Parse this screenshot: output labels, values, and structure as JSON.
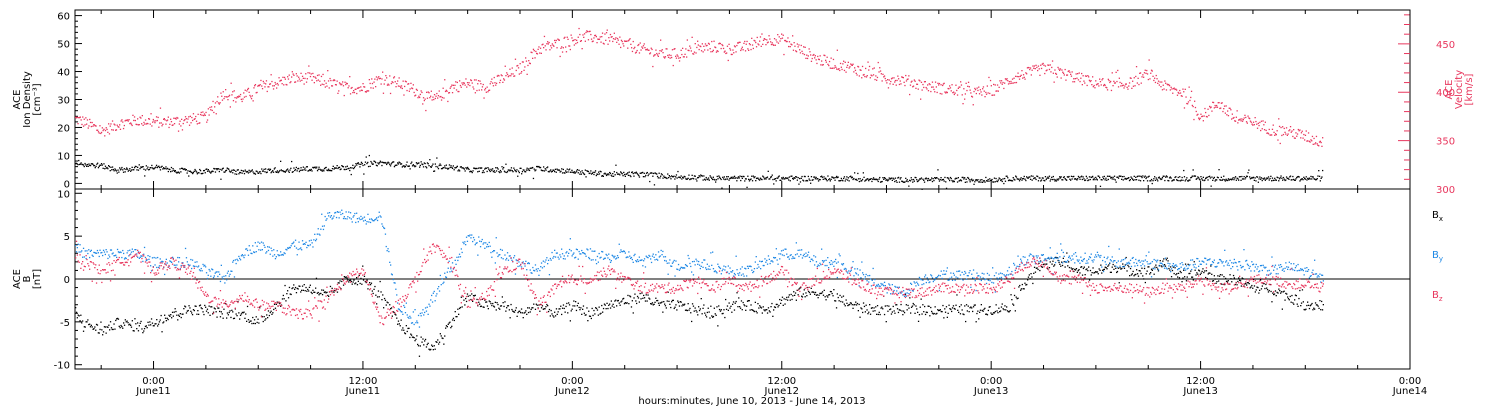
{
  "chart_data": [
    {
      "type": "scatter",
      "panel": "plasma",
      "ylabel_left": [
        "ACE",
        "Ion Density",
        "[cm⁻³]"
      ],
      "ylabel_right": [
        "ACE",
        "Velocity",
        "[km/s]"
      ],
      "ylim_left": [
        -2,
        62
      ],
      "ylim_right": [
        300,
        485
      ],
      "yticks_left": [
        0,
        10,
        20,
        30,
        40,
        50,
        60
      ],
      "yticks_right": [
        300,
        350,
        400,
        450
      ],
      "xlim_hours": [
        -4.5,
        72
      ],
      "series": [
        {
          "name": "Velocity",
          "axis": "right",
          "color": "#e8365d",
          "x": [
            -4.5,
            -4,
            -3,
            -2,
            -1,
            0,
            1,
            2,
            3,
            4,
            5,
            6,
            7,
            8,
            9,
            10,
            11,
            12,
            13,
            14,
            15,
            16,
            17,
            18,
            19,
            20,
            21,
            22,
            23,
            24,
            25,
            26,
            27,
            28,
            29,
            30,
            31,
            32,
            33,
            34,
            35,
            36,
            37,
            38,
            39,
            40,
            41,
            42,
            43,
            44,
            45,
            46,
            47,
            48,
            49,
            50,
            51,
            52,
            53,
            54,
            55,
            56,
            57,
            58,
            59,
            60,
            61,
            62,
            63,
            64,
            65,
            66,
            67
          ],
          "values": [
            373,
            370,
            360,
            368,
            372,
            370,
            370,
            372,
            375,
            400,
            395,
            405,
            410,
            415,
            415,
            410,
            405,
            405,
            415,
            410,
            402,
            392,
            405,
            410,
            406,
            415,
            425,
            445,
            450,
            455,
            458,
            455,
            450,
            445,
            440,
            440,
            445,
            448,
            445,
            448,
            455,
            455,
            445,
            435,
            430,
            426,
            420,
            415,
            413,
            408,
            405,
            403,
            400,
            402,
            413,
            420,
            425,
            420,
            415,
            410,
            408,
            410,
            420,
            405,
            400,
            375,
            390,
            372,
            370,
            362,
            360,
            355,
            348
          ]
        },
        {
          "name": "Ion Density",
          "axis": "left",
          "color": "#000000",
          "x": [
            -4.5,
            -4,
            -3,
            -2,
            -1,
            0,
            1,
            2,
            3,
            4,
            5,
            6,
            7,
            8,
            9,
            10,
            11,
            12,
            13,
            14,
            15,
            16,
            17,
            18,
            19,
            20,
            21,
            22,
            23,
            24,
            25,
            26,
            27,
            28,
            29,
            30,
            31,
            32,
            33,
            34,
            35,
            36,
            37,
            38,
            39,
            40,
            41,
            42,
            43,
            44,
            45,
            46,
            47,
            48,
            49,
            50,
            51,
            52,
            53,
            54,
            55,
            56,
            57,
            58,
            59,
            60,
            61,
            62,
            63,
            64,
            65,
            66,
            67
          ],
          "values": [
            8,
            7,
            6.5,
            5,
            5.5,
            6,
            5,
            4.5,
            4.5,
            5,
            4,
            4.5,
            5,
            5,
            5.5,
            5.5,
            6,
            7,
            7.5,
            7,
            7,
            6.5,
            6,
            5,
            5,
            5,
            5,
            5.5,
            5,
            4.5,
            4,
            3.5,
            3.5,
            3.5,
            3,
            2.5,
            2.5,
            2,
            2,
            2,
            2,
            2,
            2,
            2,
            2,
            2,
            1.5,
            1.5,
            1.5,
            1.5,
            1.5,
            1.5,
            1.5,
            1.5,
            2,
            2,
            2,
            2,
            2,
            2,
            2,
            2,
            2,
            2,
            2,
            2,
            2,
            2,
            2,
            2,
            2,
            2,
            2
          ]
        }
      ]
    },
    {
      "type": "scatter",
      "panel": "magnetic-field",
      "ylabel": [
        "ACE",
        "B",
        "[nT]"
      ],
      "ylim": [
        -10.5,
        10.5
      ],
      "yticks": [
        -10,
        -5,
        0,
        5,
        10
      ],
      "zero_line": true,
      "xlim_hours": [
        -4.5,
        72
      ],
      "series": [
        {
          "name": "Bx",
          "color": "#000000",
          "x": [
            -4.5,
            -4,
            -3,
            -2,
            -1,
            0,
            1,
            2,
            3,
            4,
            5,
            6,
            7,
            8,
            9,
            10,
            11,
            12,
            13,
            14,
            15,
            16,
            17,
            18,
            19,
            20,
            21,
            22,
            23,
            24,
            25,
            26,
            27,
            28,
            29,
            30,
            31,
            32,
            33,
            34,
            35,
            36,
            37,
            38,
            39,
            40,
            41,
            42,
            43,
            44,
            45,
            46,
            47,
            48,
            49,
            50,
            51,
            52,
            53,
            54,
            55,
            56,
            57,
            58,
            59,
            60,
            61,
            62,
            63,
            64,
            65,
            66,
            67
          ],
          "values": [
            -4,
            -5,
            -6,
            -5,
            -5.5,
            -5,
            -4,
            -3.5,
            -3.5,
            -4,
            -4,
            -5,
            -3,
            -1,
            -1,
            -2,
            0,
            0,
            -2,
            -5,
            -7,
            -8,
            -5,
            -2,
            -3,
            -3,
            -4,
            -3,
            -4,
            -3,
            -4,
            -3,
            -2.5,
            -2,
            -3,
            -3,
            -3.5,
            -4,
            -3,
            -3,
            -3.5,
            -2.5,
            -1.5,
            -1.5,
            -2,
            -3,
            -3.5,
            -3.5,
            -3.5,
            -3.5,
            -3.5,
            -3.5,
            -3.5,
            -3.5,
            -3.2,
            0,
            2,
            2,
            1,
            1,
            1.5,
            1,
            1,
            2,
            0,
            1,
            0,
            0,
            -1,
            -1,
            -2,
            -3,
            -3
          ]
        },
        {
          "name": "By",
          "color": "#1e88e5",
          "x": [
            -4.5,
            -4,
            -3,
            -2,
            -1,
            0,
            1,
            2,
            3,
            4,
            5,
            6,
            7,
            8,
            9,
            10,
            11,
            12,
            13,
            14,
            15,
            16,
            17,
            18,
            19,
            20,
            21,
            22,
            23,
            24,
            25,
            26,
            27,
            28,
            29,
            30,
            31,
            32,
            33,
            34,
            35,
            36,
            37,
            38,
            39,
            40,
            41,
            42,
            43,
            44,
            45,
            46,
            47,
            48,
            49,
            50,
            51,
            52,
            53,
            54,
            55,
            56,
            57,
            58,
            59,
            60,
            61,
            62,
            63,
            64,
            65,
            66,
            67
          ],
          "values": [
            4,
            3,
            3,
            3,
            3,
            2,
            2,
            2,
            1,
            0,
            3,
            4,
            3,
            4,
            4,
            7.5,
            7.5,
            7,
            7.5,
            -3,
            -5,
            -2,
            1,
            5,
            4,
            3,
            2,
            1,
            3,
            3,
            3,
            2.5,
            3,
            2,
            3,
            1.5,
            2,
            1.5,
            1,
            1,
            2,
            3,
            3,
            2,
            2,
            1,
            0,
            -1,
            -1.5,
            0,
            0.5,
            0.5,
            0.5,
            0,
            1,
            2.5,
            2.5,
            2.5,
            2.5,
            2.5,
            2,
            2,
            2,
            1.5,
            1.5,
            2,
            2,
            2,
            1.5,
            1,
            1.5,
            1,
            0
          ]
        },
        {
          "name": "Bz",
          "color": "#e8365d",
          "x": [
            -4.5,
            -4,
            -3,
            -2,
            -1,
            0,
            1,
            2,
            3,
            4,
            5,
            6,
            7,
            8,
            9,
            10,
            11,
            12,
            13,
            14,
            15,
            16,
            17,
            18,
            19,
            20,
            21,
            22,
            23,
            24,
            25,
            26,
            27,
            28,
            29,
            30,
            31,
            32,
            33,
            34,
            35,
            36,
            37,
            38,
            39,
            40,
            41,
            42,
            43,
            44,
            45,
            46,
            47,
            48,
            49,
            50,
            51,
            52,
            53,
            54,
            55,
            56,
            57,
            58,
            59,
            60,
            61,
            62,
            63,
            64,
            65,
            66,
            67
          ],
          "values": [
            3,
            2,
            1,
            2,
            3,
            1,
            2,
            1,
            -2,
            -3,
            -2,
            -3,
            -3,
            -4,
            -4,
            -2,
            0,
            1,
            -5,
            -3,
            0,
            4,
            2,
            -3,
            -2,
            1,
            2,
            -3,
            -1,
            0,
            0,
            1,
            0,
            -1,
            -1,
            -1,
            0,
            -1,
            0,
            -1,
            0,
            1,
            -1,
            0,
            1,
            0,
            -1,
            -1.5,
            -1.5,
            -1.5,
            -1,
            -1,
            -1,
            -1,
            0,
            2,
            2,
            0,
            0,
            -1,
            -1,
            -1,
            -1.5,
            -1,
            -1,
            0,
            -1,
            -1,
            0,
            0,
            -0.5,
            -0.5,
            -1
          ]
        }
      ],
      "legend": [
        {
          "label": "B",
          "sub": "x",
          "color": "#000000"
        },
        {
          "label": "B",
          "sub": "y",
          "color": "#1e88e5"
        },
        {
          "label": "B",
          "sub": "z",
          "color": "#e8365d"
        }
      ]
    }
  ],
  "x_axis": {
    "ticks": [
      {
        "hour": 0,
        "time": "0:00",
        "day": "June11"
      },
      {
        "hour": 12,
        "time": "12:00",
        "day": "June11"
      },
      {
        "hour": 24,
        "time": "0:00",
        "day": "June12"
      },
      {
        "hour": 36,
        "time": "12:00",
        "day": "June12"
      },
      {
        "hour": 48,
        "time": "0:00",
        "day": "June13"
      },
      {
        "hour": 60,
        "time": "12:00",
        "day": "June13"
      },
      {
        "hour": 72,
        "time": "0:00",
        "day": "June14"
      }
    ],
    "minor_every_hours": 3,
    "title": "hours:minutes, June 10, 2013 - June 14, 2013"
  }
}
